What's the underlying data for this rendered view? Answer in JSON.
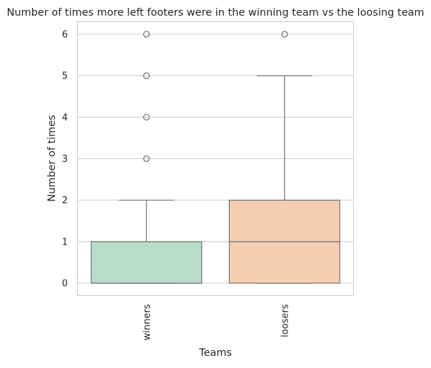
{
  "chart_data": {
    "type": "box",
    "title": "Number of times more left footers were in the winning team vs the loosing team",
    "xlabel": "Teams",
    "ylabel": "Number of times",
    "categories": [
      "winners",
      "loosers"
    ],
    "ylim": [
      -0.3,
      6.3
    ],
    "yticks": [
      0,
      1,
      2,
      3,
      4,
      5,
      6
    ],
    "grid": "horizontal",
    "boxes": [
      {
        "category": "winners",
        "color": "#b7dccb",
        "whisker_low": 0,
        "q1": 0,
        "median": 0,
        "q3": 1,
        "whisker_high": 2,
        "outliers": [
          3,
          4,
          5,
          6
        ]
      },
      {
        "category": "loosers",
        "color": "#f5cdb0",
        "whisker_low": 0,
        "q1": 0,
        "median": 1,
        "q3": 2,
        "whisker_high": 5,
        "outliers": [
          6
        ]
      }
    ],
    "colors": {
      "grid": "#cccccc",
      "axes_edge": "#cccccc",
      "box_edge": "#707070",
      "text": "#262626"
    }
  }
}
